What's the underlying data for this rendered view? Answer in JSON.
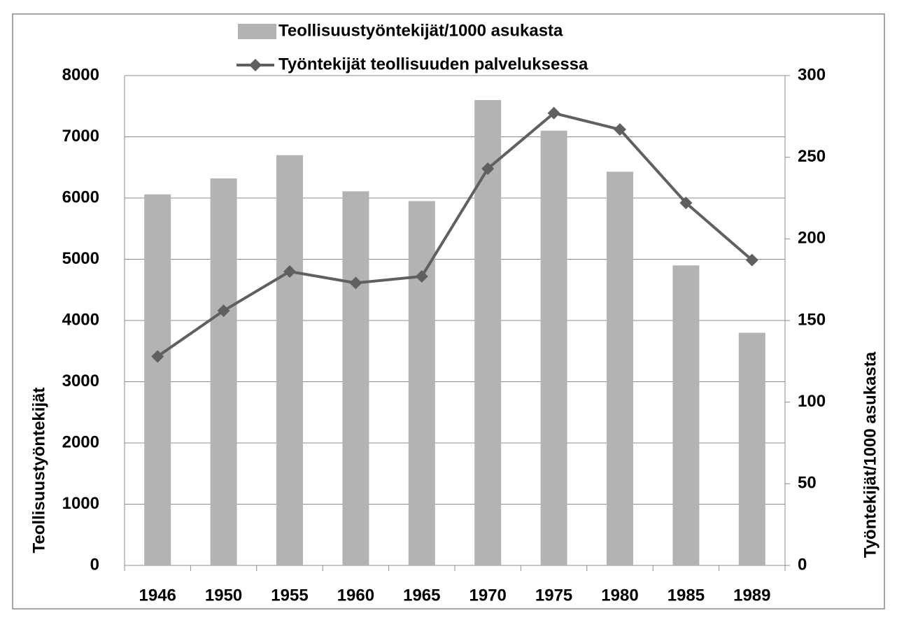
{
  "chart_data": {
    "type": "bar",
    "categories": [
      "1946",
      "1950",
      "1955",
      "1960",
      "1965",
      "1970",
      "1975",
      "1980",
      "1985",
      "1989"
    ],
    "series": [
      {
        "name": "Teollisuustyöntekijät/1000 asukasta",
        "type": "bar",
        "color": "#b3b3b3",
        "values": [
          6060,
          6320,
          6700,
          6110,
          5950,
          7600,
          7100,
          6430,
          4900,
          3800
        ]
      },
      {
        "name": "Työntekijät teollisuuden palveluksessa",
        "type": "line",
        "axis": "y2",
        "color": "#606060",
        "values": [
          128,
          156,
          180,
          173,
          177,
          243,
          277,
          267,
          222,
          187
        ]
      }
    ],
    "ylabel": "Teollisuustyöntekijät",
    "y2label": "Työntekijät/1000 asukasta",
    "ylim": [
      0,
      8000
    ],
    "yticks": [
      0,
      1000,
      2000,
      3000,
      4000,
      5000,
      6000,
      7000,
      8000
    ],
    "y2lim": [
      0,
      300
    ],
    "y2ticks": [
      0,
      50,
      100,
      150,
      200,
      250,
      300
    ],
    "grid": true,
    "legend": "top"
  }
}
